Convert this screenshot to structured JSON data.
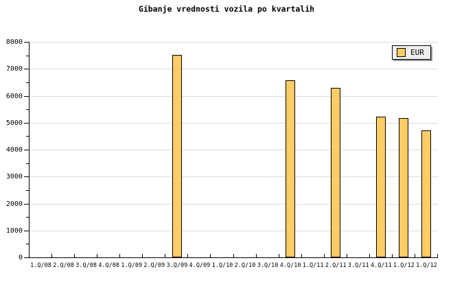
{
  "chart_data": {
    "type": "bar",
    "title": "Gibanje vrednosti vozila po kvartalih",
    "categories": [
      "1.Q/08",
      "2.Q/08",
      "3.Q/08",
      "4.Q/08",
      "1.Q/09",
      "2.Q/09",
      "3.Q/09",
      "4.Q/09",
      "1.Q/10",
      "2.Q/10",
      "3.Q/10",
      "4.Q/10",
      "1.Q/11",
      "2.Q/11",
      "3.Q/11",
      "4.Q/11",
      "1.Q/12",
      "1.Q/12"
    ],
    "series": [
      {
        "name": "EUR",
        "color": "#FFCC66",
        "values": [
          null,
          null,
          null,
          null,
          null,
          null,
          7520,
          null,
          null,
          null,
          null,
          6570,
          null,
          6300,
          null,
          5220,
          5160,
          4710
        ]
      }
    ],
    "xlabel": "",
    "ylabel": "",
    "ylim": [
      0,
      8000
    ],
    "ytick_interval": 1000,
    "ytick_minor_interval": 500,
    "ytick_labels": [
      "0",
      "1000",
      "2000",
      "3000",
      "4000",
      "5000",
      "6000",
      "7000",
      "8000"
    ],
    "grid": true,
    "legend": {
      "label": "EUR",
      "position": "top-right"
    }
  },
  "colors": {
    "bar_fill": "#FFCC66",
    "bar_border": "#000000",
    "gridline": "#DDDDDD",
    "axis": "#000000",
    "legend_bg": "#EFEFEF",
    "legend_border": "#000000",
    "legend_shadow": "#999999",
    "text": "#000000",
    "background": "#FFFFFF"
  }
}
